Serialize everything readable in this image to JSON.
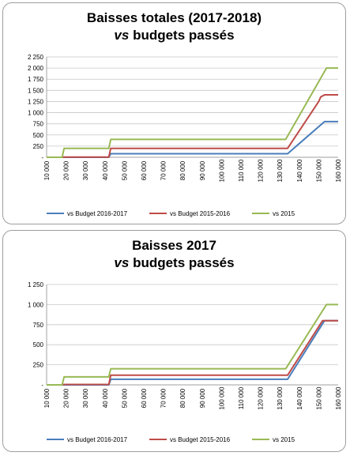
{
  "chart_data": [
    {
      "type": "line",
      "title_line1": "Baisses totales (2017-2018)",
      "title_line2_italic": "vs",
      "title_line2_rest": " budgets passés",
      "ylim": [
        0,
        2250
      ],
      "y_ticks": [
        0,
        250,
        500,
        750,
        1000,
        1250,
        1500,
        1750,
        2000,
        2250
      ],
      "y_tick_labels": [
        "-",
        "250",
        "500",
        "750",
        "1 000",
        "1 250",
        "1 500",
        "1 750",
        "2 000",
        "2 250"
      ],
      "xlim": [
        10000,
        160000
      ],
      "x_ticks": [
        10000,
        20000,
        30000,
        40000,
        50000,
        60000,
        70000,
        80000,
        90000,
        100000,
        110000,
        120000,
        130000,
        140000,
        150000,
        160000
      ],
      "x_tick_labels": [
        "10 000",
        "20 000",
        "30 000",
        "40 000",
        "50 000",
        "60 000",
        "70 000",
        "80 000",
        "90 000",
        "100 000",
        "110 000",
        "120 000",
        "130 000",
        "140 000",
        "150 000",
        "160 000"
      ],
      "grid": true,
      "legend_position": "bottom",
      "series": [
        {
          "name": "vs Budget 2016-2017",
          "color": "#4a7ebb",
          "x": [
            10000,
            42000,
            43000,
            134000,
            153000,
            160000
          ],
          "y": [
            0,
            0,
            80,
            80,
            800,
            800
          ]
        },
        {
          "name": "vs Budget 2015-2016",
          "color": "#be4b48",
          "x": [
            10000,
            18000,
            19000,
            42000,
            43000,
            134000,
            150000,
            151000,
            153000,
            160000
          ],
          "y": [
            0,
            0,
            5,
            5,
            200,
            200,
            1250,
            1350,
            1400,
            1400
          ]
        },
        {
          "name": "vs 2015",
          "color": "#98b954",
          "x": [
            10000,
            18000,
            19000,
            42000,
            43000,
            133000,
            154000,
            160000
          ],
          "y": [
            0,
            0,
            200,
            200,
            400,
            400,
            2000,
            2000
          ]
        }
      ]
    },
    {
      "type": "line",
      "title_line1": "Baisses 2017",
      "title_line2_italic": "vs",
      "title_line2_rest": " budgets passés",
      "ylim": [
        0,
        1250
      ],
      "y_ticks": [
        0,
        250,
        500,
        750,
        1000,
        1250
      ],
      "y_tick_labels": [
        "-",
        "250",
        "500",
        "750",
        "1 000",
        "1 250"
      ],
      "xlim": [
        10000,
        160000
      ],
      "x_ticks": [
        10000,
        20000,
        30000,
        40000,
        50000,
        60000,
        70000,
        80000,
        90000,
        100000,
        110000,
        120000,
        130000,
        140000,
        150000,
        160000
      ],
      "x_tick_labels": [
        "10 000",
        "20 000",
        "30 000",
        "40 000",
        "50 000",
        "60 000",
        "70 000",
        "80 000",
        "90 000",
        "100 000",
        "110 000",
        "120 000",
        "130 000",
        "140 000",
        "150 000",
        "160 000"
      ],
      "grid": true,
      "legend_position": "bottom",
      "series": [
        {
          "name": "vs Budget 2016-2017",
          "color": "#4a7ebb",
          "x": [
            10000,
            42000,
            43000,
            134000,
            153000,
            160000
          ],
          "y": [
            0,
            0,
            70,
            70,
            800,
            800
          ]
        },
        {
          "name": "vs Budget 2015-2016",
          "color": "#be4b48",
          "x": [
            10000,
            18000,
            19000,
            42000,
            43000,
            134000,
            152000,
            160000
          ],
          "y": [
            0,
            0,
            5,
            5,
            120,
            120,
            800,
            800
          ]
        },
        {
          "name": "vs 2015",
          "color": "#98b954",
          "x": [
            10000,
            18000,
            19000,
            42000,
            43000,
            133000,
            154000,
            160000
          ],
          "y": [
            0,
            0,
            100,
            100,
            200,
            200,
            1000,
            1000
          ]
        }
      ]
    }
  ]
}
